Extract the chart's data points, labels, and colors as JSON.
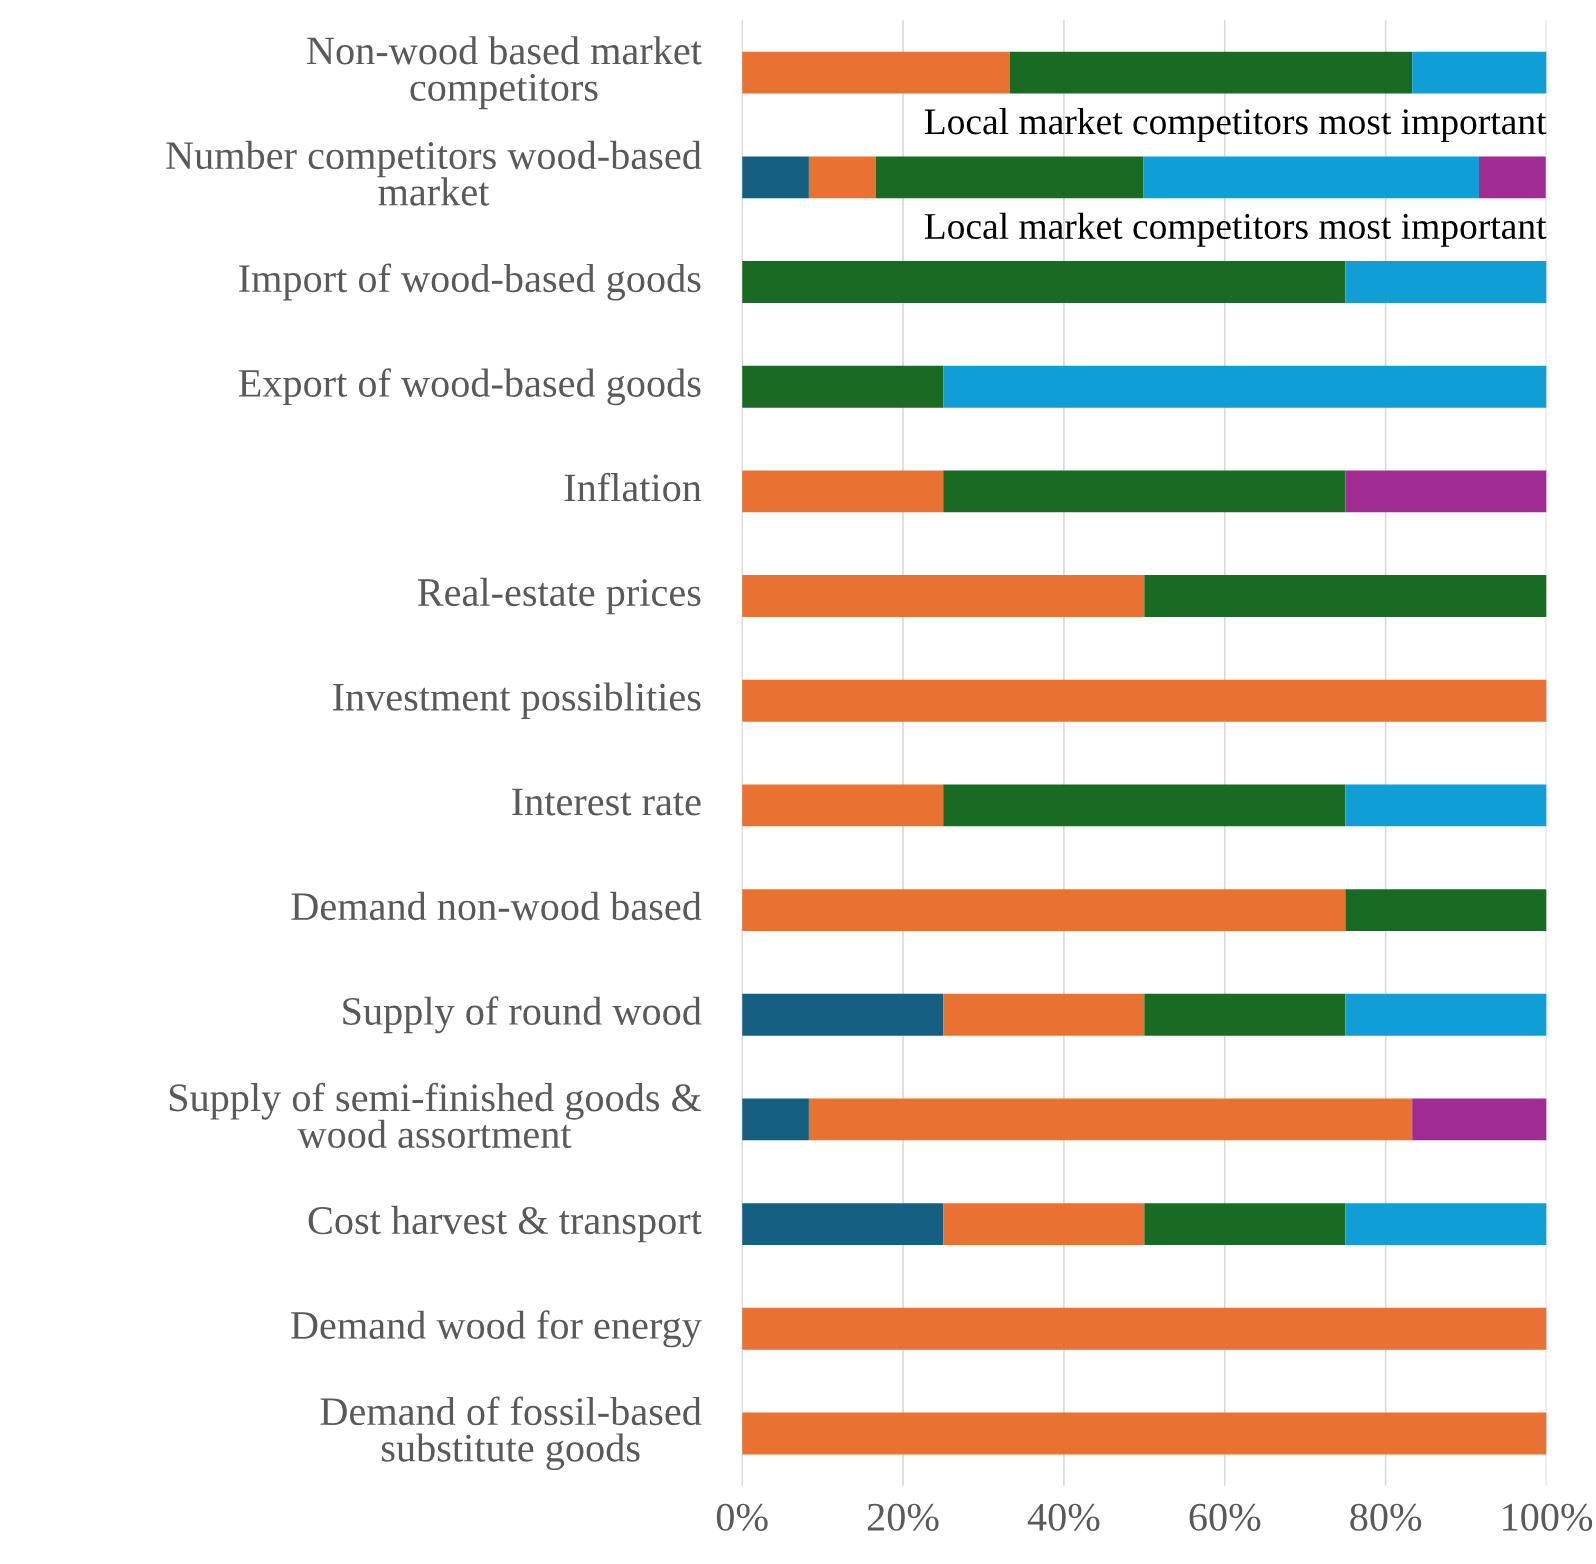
{
  "chart_data": {
    "type": "bar",
    "orientation": "horizontal",
    "stacked": true,
    "categories": [
      "Non-wood based market competitors",
      "Number competitors wood-based market",
      "Import of wood-based goods",
      "Export of wood-based goods",
      "Inflation",
      "Real-estate prices",
      "Investment possiblities",
      "Interest rate",
      "Demand non-wood based",
      "Supply of round wood",
      "Supply of semi-finished goods & wood assortment",
      "Cost harvest & transport",
      "Demand wood for energy",
      "Demand of fossil-based substitute goods"
    ],
    "series": [
      {
        "color": "#155f83",
        "values": [
          null,
          8.3,
          null,
          null,
          null,
          null,
          null,
          null,
          null,
          25,
          8.3,
          25,
          null,
          null
        ]
      },
      {
        "color": "#e97132",
        "values": [
          33.3,
          8.3,
          null,
          null,
          25,
          50,
          100,
          25,
          75,
          25,
          75,
          25,
          100,
          100
        ]
      },
      {
        "color": "#196b24",
        "values": [
          50,
          33.3,
          75,
          25,
          50,
          50,
          null,
          50,
          25,
          25,
          null,
          25,
          null,
          null
        ]
      },
      {
        "color": "#0f9ed5",
        "values": [
          16.7,
          41.7,
          25,
          75,
          null,
          null,
          null,
          25,
          null,
          25,
          null,
          25,
          null,
          null
        ]
      },
      {
        "color": "#a02b93",
        "values": [
          null,
          8.3,
          null,
          null,
          25,
          null,
          null,
          null,
          null,
          null,
          16.7,
          null,
          null,
          null
        ]
      }
    ],
    "xlim": [
      0,
      100
    ],
    "xticks": [
      {
        "value": 0,
        "label": "0%"
      },
      {
        "value": 20,
        "label": "20%"
      },
      {
        "value": 40,
        "label": "40%"
      },
      {
        "value": 60,
        "label": "60%"
      },
      {
        "value": 80,
        "label": "80%"
      },
      {
        "value": 100,
        "label": "100%"
      }
    ],
    "grid": "x",
    "annotations": [
      {
        "text": "Local market competitors most important",
        "x": 100,
        "y": "Non-wood based market competitors"
      },
      {
        "text": "Local market competitors most important",
        "x": 100,
        "y": "Number competitors wood-based market"
      }
    ]
  }
}
